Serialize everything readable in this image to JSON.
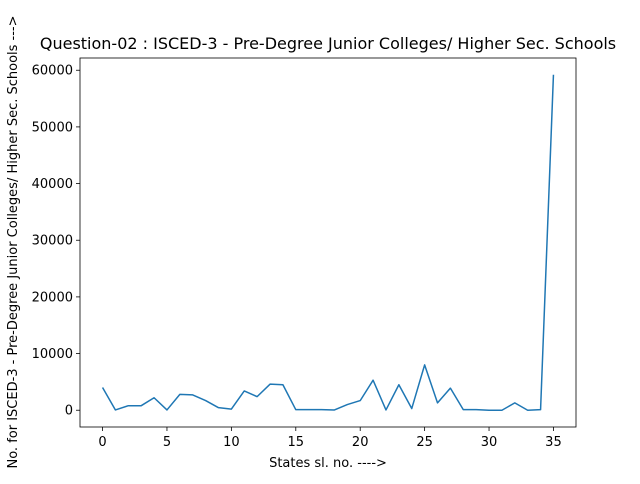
{
  "chart_data": {
    "type": "line",
    "title": "Question-02 : ISCED-3 - Pre-Degree Junior Colleges/ Higher Sec. Schools",
    "xlabel": "States sl. no. ---->",
    "ylabel": "No. for ISCED-3 - Pre-Degree Junior Colleges/ Higher Sec. Schools --->",
    "xlim": [
      -1.75,
      36.75
    ],
    "ylim": [
      -2960,
      62160
    ],
    "xticks": [
      0,
      5,
      10,
      15,
      20,
      25,
      30,
      35
    ],
    "yticks": [
      0,
      10000,
      20000,
      30000,
      40000,
      50000,
      60000
    ],
    "series": [
      {
        "color": "#1f77b4",
        "x": [
          0,
          1,
          2,
          3,
          4,
          5,
          6,
          7,
          8,
          9,
          10,
          11,
          12,
          13,
          14,
          15,
          16,
          17,
          18,
          19,
          20,
          21,
          22,
          23,
          24,
          25,
          26,
          27,
          28,
          29,
          30,
          31,
          32,
          33,
          34,
          35
        ],
        "values": [
          4000,
          50,
          800,
          800,
          2200,
          50,
          2800,
          2700,
          1700,
          450,
          200,
          3400,
          2400,
          4600,
          4500,
          100,
          100,
          100,
          50,
          1000,
          1700,
          5300,
          50,
          4500,
          300,
          8000,
          1300,
          3900,
          100,
          100,
          0,
          0,
          1300,
          0,
          100,
          59200
        ]
      }
    ]
  }
}
